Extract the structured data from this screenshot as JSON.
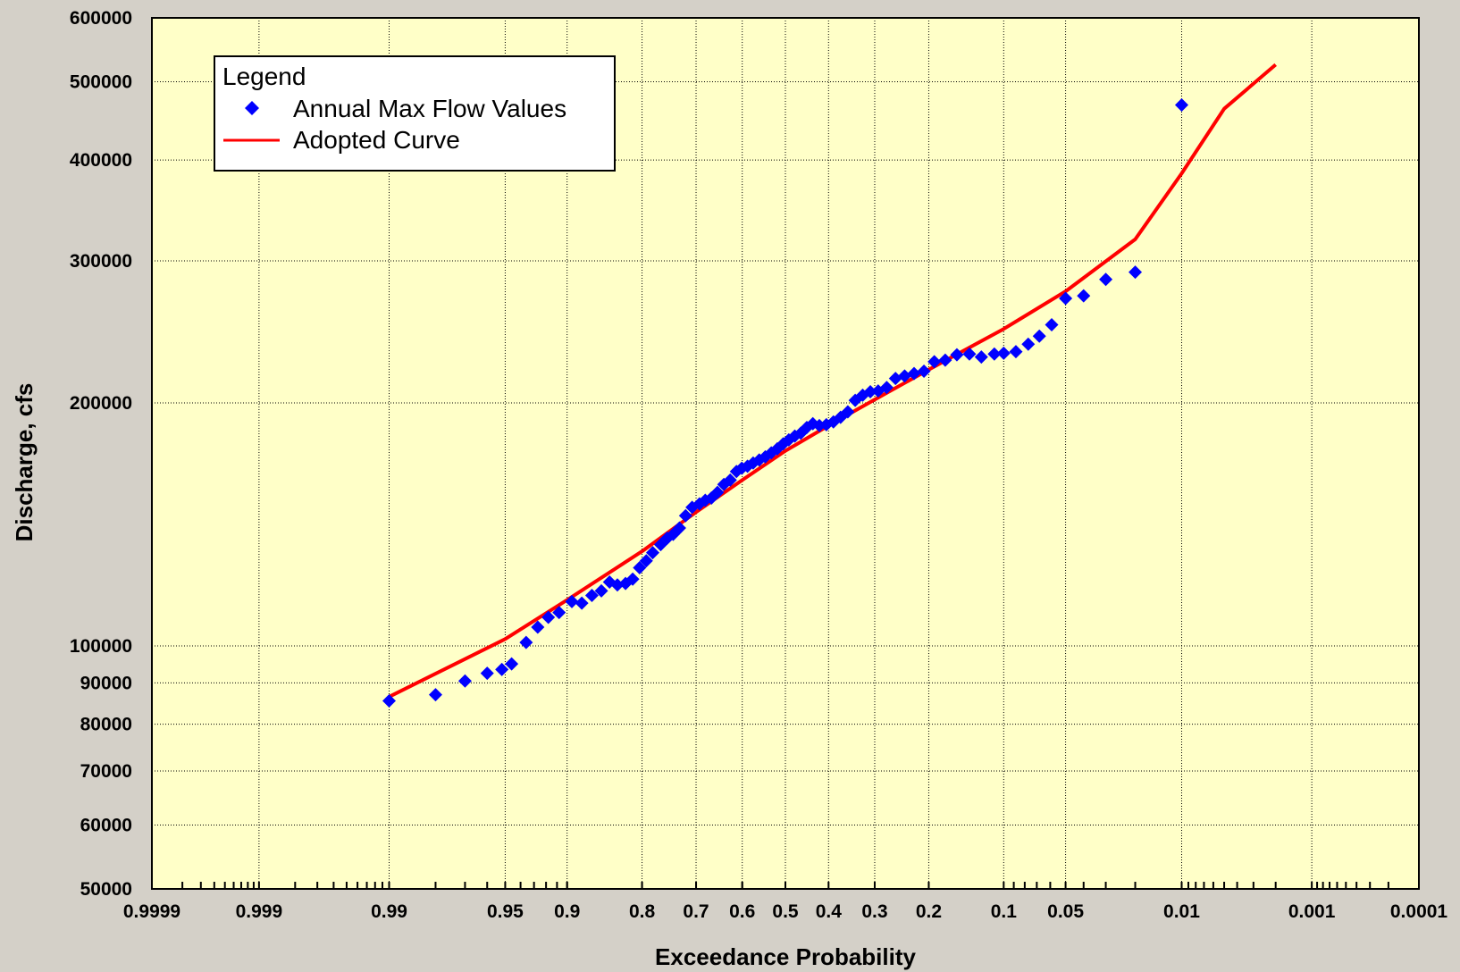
{
  "chart_data": {
    "type": "scatter",
    "xlabel": "Exceedance Probability",
    "ylabel": "Discharge, cfs",
    "x_scale": "normal-probability (reversed)",
    "y_scale": "log",
    "xlim": [
      0.9999,
      0.0001
    ],
    "ylim": [
      50000,
      600000
    ],
    "x_ticks": [
      {
        "value": 0.9999,
        "label": "0.9999"
      },
      {
        "value": 0.999,
        "label": "0.999"
      },
      {
        "value": 0.99,
        "label": "0.99"
      },
      {
        "value": 0.95,
        "label": "0.95"
      },
      {
        "value": 0.9,
        "label": "0.9"
      },
      {
        "value": 0.8,
        "label": "0.8"
      },
      {
        "value": 0.7,
        "label": "0.7"
      },
      {
        "value": 0.6,
        "label": "0.6"
      },
      {
        "value": 0.5,
        "label": "0.5"
      },
      {
        "value": 0.4,
        "label": "0.4"
      },
      {
        "value": 0.3,
        "label": "0.3"
      },
      {
        "value": 0.2,
        "label": "0.2"
      },
      {
        "value": 0.1,
        "label": "0.1"
      },
      {
        "value": 0.05,
        "label": "0.05"
      },
      {
        "value": 0.01,
        "label": "0.01"
      },
      {
        "value": 0.001,
        "label": "0.001"
      },
      {
        "value": 0.0001,
        "label": "0.0001"
      }
    ],
    "y_ticks": [
      {
        "value": 50000,
        "label": "50000"
      },
      {
        "value": 60000,
        "label": "60000"
      },
      {
        "value": 70000,
        "label": "70000"
      },
      {
        "value": 80000,
        "label": "80000"
      },
      {
        "value": 90000,
        "label": "90000"
      },
      {
        "value": 100000,
        "label": "100000"
      },
      {
        "value": 200000,
        "label": "200000"
      },
      {
        "value": 300000,
        "label": "300000"
      },
      {
        "value": 400000,
        "label": "400000"
      },
      {
        "value": 500000,
        "label": "500000"
      },
      {
        "value": 600000,
        "label": "600000"
      }
    ],
    "grid": true,
    "legend": {
      "title": "Legend",
      "placement": "top-left",
      "entries": [
        "Annual Max Flow Values",
        "Adopted Curve"
      ]
    },
    "series": [
      {
        "name": "Annual Max Flow Values",
        "kind": "scatter",
        "marker": "diamond",
        "color": "#0000ff",
        "points": [
          [
            0.99,
            85500
          ],
          [
            0.98,
            87000
          ],
          [
            0.97,
            90500
          ],
          [
            0.96,
            92500
          ],
          [
            0.952,
            93500
          ],
          [
            0.946,
            95000
          ],
          [
            0.936,
            101000
          ],
          [
            0.927,
            105500
          ],
          [
            0.918,
            108500
          ],
          [
            0.908,
            110000
          ],
          [
            0.895,
            113500
          ],
          [
            0.884,
            113000
          ],
          [
            0.872,
            115500
          ],
          [
            0.86,
            117000
          ],
          [
            0.849,
            120000
          ],
          [
            0.838,
            119000
          ],
          [
            0.826,
            119500
          ],
          [
            0.815,
            121000
          ],
          [
            0.804,
            125000
          ],
          [
            0.793,
            127500
          ],
          [
            0.782,
            130500
          ],
          [
            0.768,
            133500
          ],
          [
            0.756,
            136000
          ],
          [
            0.745,
            137500
          ],
          [
            0.733,
            140000
          ],
          [
            0.721,
            145000
          ],
          [
            0.708,
            148500
          ],
          [
            0.693,
            150000
          ],
          [
            0.681,
            151500
          ],
          [
            0.668,
            152500
          ],
          [
            0.655,
            155000
          ],
          [
            0.641,
            158500
          ],
          [
            0.627,
            160500
          ],
          [
            0.613,
            164500
          ],
          [
            0.601,
            166000
          ],
          [
            0.588,
            167000
          ],
          [
            0.575,
            168500
          ],
          [
            0.561,
            170000
          ],
          [
            0.547,
            171500
          ],
          [
            0.533,
            173500
          ],
          [
            0.519,
            175500
          ],
          [
            0.505,
            178000
          ],
          [
            0.492,
            180000
          ],
          [
            0.478,
            182000
          ],
          [
            0.464,
            183500
          ],
          [
            0.45,
            186500
          ],
          [
            0.436,
            188500
          ],
          [
            0.421,
            187500
          ],
          [
            0.405,
            188000
          ],
          [
            0.389,
            189500
          ],
          [
            0.373,
            192000
          ],
          [
            0.357,
            195000
          ],
          [
            0.341,
            201500
          ],
          [
            0.325,
            204500
          ],
          [
            0.309,
            206500
          ],
          [
            0.293,
            207000
          ],
          [
            0.276,
            209000
          ],
          [
            0.259,
            214500
          ],
          [
            0.242,
            216000
          ],
          [
            0.225,
            217500
          ],
          [
            0.208,
            219000
          ],
          [
            0.191,
            225000
          ],
          [
            0.174,
            226000
          ],
          [
            0.157,
            229500
          ],
          [
            0.14,
            230000
          ],
          [
            0.125,
            228000
          ],
          [
            0.11,
            230000
          ],
          [
            0.1,
            230500
          ],
          [
            0.088,
            231500
          ],
          [
            0.077,
            236500
          ],
          [
            0.068,
            242000
          ],
          [
            0.059,
            250000
          ],
          [
            0.05,
            269500
          ],
          [
            0.04,
            271500
          ],
          [
            0.03,
            284500
          ],
          [
            0.02,
            290500
          ],
          [
            0.01,
            468000
          ]
        ]
      },
      {
        "name": "Adopted Curve",
        "kind": "line",
        "color": "#ff0000",
        "points": [
          [
            0.99,
            86500
          ],
          [
            0.95,
            102000
          ],
          [
            0.9,
            114000
          ],
          [
            0.8,
            131000
          ],
          [
            0.7,
            146500
          ],
          [
            0.6,
            160500
          ],
          [
            0.5,
            174500
          ],
          [
            0.4,
            187500
          ],
          [
            0.3,
            202000
          ],
          [
            0.2,
            220000
          ],
          [
            0.1,
            247000
          ],
          [
            0.05,
            275000
          ],
          [
            0.02,
            319000
          ],
          [
            0.01,
            385000
          ],
          [
            0.005,
            463000
          ],
          [
            0.002,
            525000
          ]
        ]
      }
    ]
  }
}
